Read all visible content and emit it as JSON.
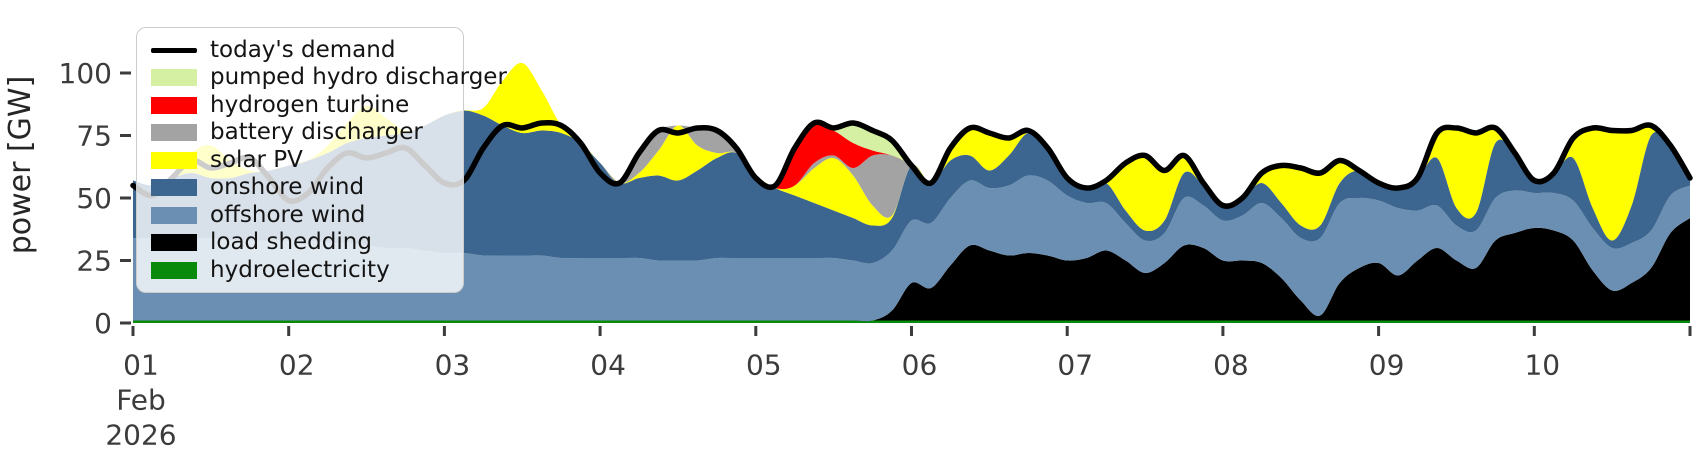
{
  "figure": {
    "ylabel": "power [GW]",
    "y_axis": {
      "ticks": [
        0,
        25,
        50,
        75,
        100
      ]
    },
    "x_axis": {
      "tick_labels": [
        "01",
        "02",
        "03",
        "04",
        "05",
        "06",
        "07",
        "08",
        "09",
        "10"
      ],
      "first_tick_sub": [
        "Feb",
        "2026"
      ]
    }
  },
  "colors": {
    "tick_text": "#3c3c3c",
    "axis_label_text": "#262626",
    "demand_line": "#000000",
    "background": "#ffffff"
  },
  "legend": {
    "entries": [
      {
        "label": "today's demand",
        "color": "#000000",
        "kind": "line"
      },
      {
        "label": "pumped hydro discharger",
        "color": "#d5f0a3",
        "kind": "patch"
      },
      {
        "label": "hydrogen turbine",
        "color": "#ff0000",
        "kind": "patch"
      },
      {
        "label": "battery discharger",
        "color": "#a3a3a3",
        "kind": "patch"
      },
      {
        "label": "solar PV",
        "color": "#ffff00",
        "kind": "patch"
      },
      {
        "label": "onshore wind",
        "color": "#3c668f",
        "kind": "patch"
      },
      {
        "label": "offshore wind",
        "color": "#6b8fb2",
        "kind": "patch"
      },
      {
        "label": "load shedding",
        "color": "#000000",
        "kind": "patch"
      },
      {
        "label": "hydroelectricity",
        "color": "#0a8a0a",
        "kind": "patch"
      }
    ]
  },
  "chart_data": {
    "type": "area",
    "stacked": true,
    "title": "",
    "xlabel": "",
    "ylabel": "power [GW]",
    "ylim": [
      0,
      112
    ],
    "xlim_days": [
      1,
      11
    ],
    "x_start_day": 1,
    "x_step_days": 0.125,
    "x_tick_labels": [
      "01",
      "02",
      "03",
      "04",
      "05",
      "06",
      "07",
      "08",
      "09",
      "10"
    ],
    "x_first_tick_sub": [
      "Feb",
      "2026"
    ],
    "grid": false,
    "legend_position": "upper left",
    "series": [
      {
        "name": "hydroelectricity",
        "color": "#0a8a0a",
        "values": [
          1,
          1,
          1,
          1,
          1,
          1,
          1,
          1,
          1,
          1,
          1,
          1,
          1,
          1,
          1,
          1,
          1,
          1,
          1,
          1,
          1,
          1,
          1,
          1,
          1,
          1,
          1,
          1,
          1,
          1,
          1,
          1,
          1,
          1,
          1,
          1,
          1,
          1,
          1,
          1,
          1,
          1,
          1,
          1,
          1,
          1,
          1,
          1,
          1,
          1,
          1,
          1,
          1,
          1,
          1,
          1,
          1,
          1,
          1,
          1,
          1,
          1,
          1,
          1,
          1,
          1,
          1,
          1,
          1,
          1,
          1,
          1,
          1,
          1,
          1,
          1,
          1,
          1,
          1,
          1,
          1
        ]
      },
      {
        "name": "load shedding",
        "color": "#000000",
        "values": [
          0,
          0,
          0,
          0,
          0,
          0,
          0,
          0,
          0,
          0,
          0,
          0,
          0,
          0,
          0,
          0,
          0,
          0,
          0,
          0,
          0,
          0,
          0,
          0,
          0,
          0,
          0,
          0,
          0,
          0,
          0,
          0,
          0,
          0,
          0,
          0,
          0,
          0,
          0,
          4,
          15,
          13,
          22,
          30,
          28,
          26,
          27,
          26,
          24,
          25,
          28,
          24,
          19,
          23,
          30,
          29,
          24,
          24,
          23,
          17,
          8,
          2,
          15,
          21,
          23,
          18,
          24,
          29,
          24,
          21,
          32,
          35,
          37,
          36,
          32,
          20,
          12,
          15,
          21,
          35,
          41
        ]
      },
      {
        "name": "offshore wind",
        "color": "#6b8fb2",
        "values": [
          33,
          33,
          33,
          33,
          33,
          32,
          32,
          32,
          32,
          32,
          31,
          31,
          30,
          29,
          29,
          28,
          27,
          27,
          26,
          26,
          26,
          26,
          25,
          25,
          25,
          25,
          25,
          24,
          24,
          24,
          25,
          25,
          25,
          25,
          25,
          25,
          25,
          24,
          23,
          24,
          25,
          26,
          27,
          26,
          25,
          28,
          31,
          30,
          26,
          22,
          19,
          15,
          13,
          12,
          19,
          17,
          16,
          18,
          24,
          24,
          25,
          31,
          32,
          28,
          25,
          27,
          20,
          17,
          14,
          15,
          17,
          17,
          14,
          15,
          16,
          17,
          17,
          16,
          15,
          15,
          13
        ]
      },
      {
        "name": "onshore wind",
        "color": "#3c668f",
        "values": [
          23,
          21,
          24,
          26,
          24,
          25,
          27,
          28,
          30,
          32,
          36,
          40,
          43,
          45,
          46,
          50,
          55,
          57,
          56,
          52,
          49,
          50,
          50,
          46,
          38,
          30,
          32,
          34,
          32,
          36,
          40,
          42,
          33,
          28,
          25,
          22,
          19,
          17,
          15,
          13,
          22,
          16,
          15,
          10,
          7,
          12,
          17,
          13,
          7,
          6,
          8,
          5,
          4,
          5,
          10,
          8,
          6,
          7,
          8,
          6,
          5,
          5,
          8,
          11,
          7,
          8,
          13,
          19,
          7,
          7,
          22,
          15,
          5,
          8,
          17,
          8,
          3,
          15,
          38,
          20,
          3
        ]
      },
      {
        "name": "solar PV",
        "color": "#ffff00",
        "values": [
          0,
          0,
          0,
          8,
          13,
          7,
          1,
          0,
          0,
          0,
          3,
          8,
          13,
          7,
          1,
          0,
          0,
          0,
          3,
          18,
          28,
          16,
          3,
          0,
          0,
          0,
          2,
          10,
          22,
          10,
          2,
          0,
          0,
          0,
          4,
          14,
          21,
          17,
          8,
          1,
          0,
          0,
          5,
          11,
          15,
          7,
          1,
          0,
          0,
          0,
          1,
          19,
          30,
          20,
          7,
          1,
          0,
          0,
          4,
          15,
          23,
          21,
          9,
          0,
          0,
          0,
          0,
          10,
          32,
          32,
          6,
          0,
          0,
          0,
          8,
          32,
          44,
          30,
          4,
          0,
          0
        ]
      },
      {
        "name": "battery discharger",
        "color": "#a3a3a3",
        "values": [
          0,
          0,
          0,
          0,
          0,
          0,
          0,
          0,
          0,
          0,
          0,
          0,
          0,
          0,
          0,
          0,
          0,
          0,
          0,
          0,
          0,
          0,
          0,
          0,
          0,
          0,
          8,
          8,
          0,
          7,
          9,
          2,
          0,
          0,
          0,
          2,
          1,
          3,
          20,
          24,
          0,
          0,
          0,
          0,
          0,
          0,
          0,
          0,
          0,
          0,
          0,
          0,
          0,
          0,
          0,
          0,
          0,
          0,
          0,
          0,
          0,
          0,
          0,
          0,
          0,
          0,
          0,
          0,
          0,
          0,
          0,
          0,
          0,
          0,
          0,
          0,
          0,
          0,
          0,
          0,
          0
        ]
      },
      {
        "name": "hydrogen turbine",
        "color": "#ff0000",
        "values": [
          0,
          0,
          0,
          0,
          0,
          0,
          0,
          0,
          0,
          0,
          0,
          0,
          0,
          0,
          0,
          0,
          0,
          0,
          0,
          0,
          0,
          0,
          0,
          0,
          0,
          0,
          0,
          0,
          0,
          0,
          0,
          0,
          0,
          0,
          15,
          16,
          10,
          10,
          2,
          0,
          0,
          0,
          0,
          0,
          0,
          0,
          0,
          0,
          0,
          0,
          0,
          0,
          0,
          0,
          0,
          0,
          0,
          0,
          0,
          0,
          0,
          0,
          0,
          0,
          0,
          0,
          0,
          0,
          0,
          0,
          0,
          0,
          0,
          0,
          0,
          0,
          0,
          0,
          0,
          0,
          0
        ]
      },
      {
        "name": "pumped hydro discharger",
        "color": "#d5f0a3",
        "values": [
          0,
          0,
          0,
          0,
          0,
          0,
          0,
          0,
          0,
          0,
          0,
          0,
          0,
          0,
          0,
          0,
          0,
          0,
          0,
          0,
          0,
          0,
          0,
          0,
          0,
          0,
          0,
          0,
          0,
          0,
          0,
          0,
          0,
          0,
          0,
          0,
          1,
          8,
          8,
          6,
          0,
          0,
          0,
          0,
          0,
          0,
          0,
          0,
          0,
          0,
          0,
          0,
          0,
          0,
          0,
          0,
          0,
          0,
          0,
          0,
          0,
          0,
          0,
          0,
          0,
          0,
          0,
          0,
          0,
          0,
          0,
          0,
          0,
          0,
          0,
          0,
          0,
          0,
          0,
          0,
          0
        ]
      }
    ],
    "demand_line": {
      "name": "today's demand",
      "color": "#000000",
      "values": [
        55,
        51,
        58,
        65,
        62,
        64,
        66,
        58,
        49,
        52,
        62,
        68,
        66,
        68,
        70,
        63,
        56,
        57,
        70,
        79,
        78,
        80,
        79,
        72,
        60,
        56,
        68,
        77,
        76,
        78,
        77,
        70,
        58,
        55,
        70,
        80,
        78,
        80,
        77,
        73,
        63,
        56,
        70,
        78,
        76,
        74,
        77,
        70,
        58,
        54,
        57,
        64,
        67,
        61,
        67,
        56,
        47,
        50,
        60,
        63,
        62,
        60,
        65,
        61,
        56,
        54,
        58,
        76,
        78,
        76,
        78,
        68,
        57,
        60,
        74,
        78,
        77,
        77,
        79,
        71,
        58
      ]
    }
  }
}
